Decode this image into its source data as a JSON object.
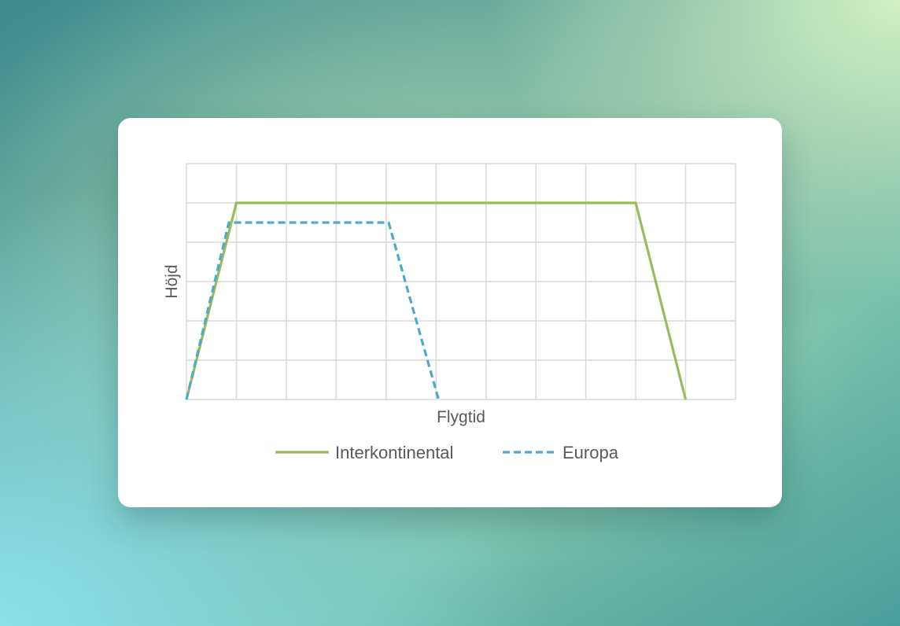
{
  "chart_data": {
    "type": "line",
    "title": "",
    "xlabel": "Flygtid",
    "ylabel": "Höjd",
    "xlim": [
      0,
      11
    ],
    "ylim": [
      0,
      6
    ],
    "x_tick_labels": false,
    "y_tick_labels": false,
    "grid": true,
    "legend": "bottom",
    "series": [
      {
        "name": "Interkontinental",
        "color": "#9bbb59",
        "style": "solid",
        "points": [
          [
            0,
            0
          ],
          [
            1,
            5
          ],
          [
            9,
            5
          ],
          [
            10,
            0
          ]
        ]
      },
      {
        "name": "Europa",
        "color": "#4bacc6",
        "style": "dashed",
        "points": [
          [
            0,
            0
          ],
          [
            0.85,
            4.5
          ],
          [
            4.05,
            4.5
          ],
          [
            5.05,
            0
          ]
        ]
      }
    ]
  }
}
